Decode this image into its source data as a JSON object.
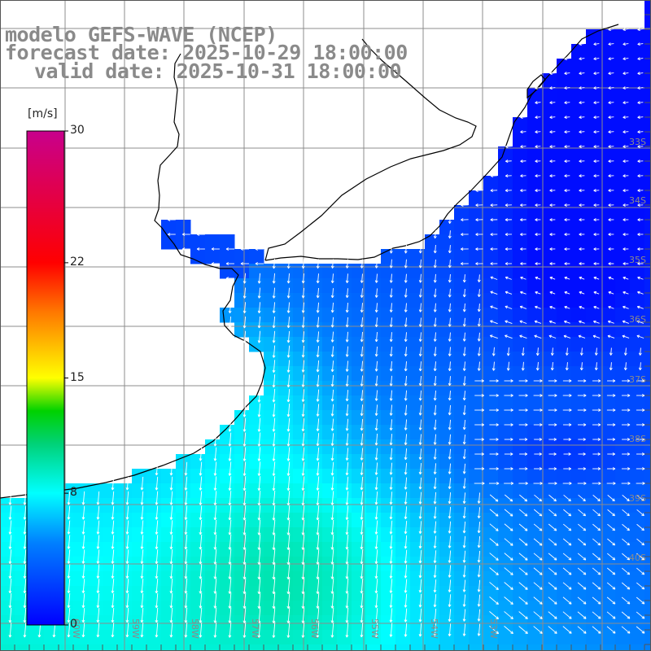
{
  "titles": {
    "line1": "modelo GEFS-WAVE (NCEP)",
    "line2": "forecast date: 2025-10-29 18:00:00",
    "line3": "valid date: 2025-10-31 18:00:00"
  },
  "colorbar": {
    "unit": "[m/s]",
    "ticks": [
      "30",
      "22",
      "15",
      "8",
      "0"
    ],
    "tick_values": [
      30,
      22,
      15,
      8,
      0
    ],
    "range": [
      0,
      30
    ]
  },
  "map": {
    "lat_labels": [
      "33S",
      "34S",
      "35S",
      "36S",
      "37S",
      "38S",
      "39S",
      "40S"
    ],
    "lon_labels": [
      "60W",
      "59W",
      "58W",
      "57W",
      "56W",
      "55W",
      "54W",
      "53W"
    ]
  },
  "colors": {
    "title": "#8a8a8a",
    "grid": "#8c8c8c",
    "coast": "#000000",
    "arrows": "#ffffff"
  }
}
